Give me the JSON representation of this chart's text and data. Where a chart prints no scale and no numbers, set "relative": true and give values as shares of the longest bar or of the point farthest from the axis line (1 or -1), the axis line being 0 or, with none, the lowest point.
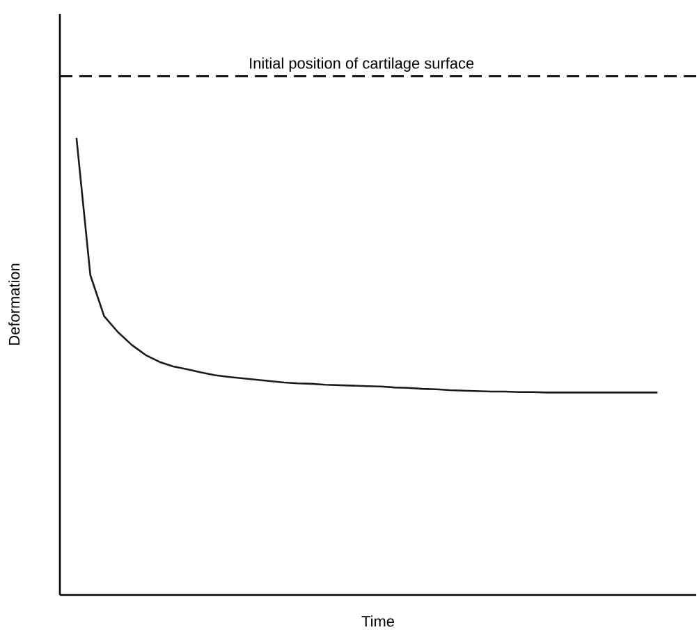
{
  "chart_data": {
    "type": "line",
    "relative": true,
    "xlabel": "Time",
    "ylabel": "Deformation",
    "categories": [
      null,
      null,
      null,
      null,
      null,
      null,
      null,
      null,
      null,
      null,
      null,
      null,
      null,
      null,
      null,
      null,
      null,
      null,
      null,
      null,
      null,
      null,
      null,
      null,
      null,
      null,
      null,
      null,
      null,
      null,
      null,
      null,
      null,
      null,
      null,
      null,
      null,
      null,
      null,
      null,
      null,
      null,
      null
    ],
    "series": [
      {
        "color": "#1a1a1a",
        "values": [
          1.0,
          0.7,
          0.61,
          0.575,
          0.547,
          0.525,
          0.51,
          0.5,
          0.494,
          0.487,
          0.481,
          0.477,
          0.474,
          0.471,
          0.468,
          0.465,
          0.463,
          0.462,
          0.46,
          0.459,
          0.458,
          0.457,
          0.456,
          0.454,
          0.453,
          0.451,
          0.45,
          0.448,
          0.447,
          0.446,
          0.445,
          0.445,
          0.444,
          0.444,
          0.443,
          0.443,
          0.443,
          0.443,
          0.443,
          0.443,
          0.443,
          0.443,
          0.443
        ]
      }
    ],
    "ref_lines": [
      {
        "axis": "y",
        "value": 1.135,
        "label": "Initial position of cartilage surface",
        "line_style": "dashed",
        "color": "#000000"
      }
    ],
    "marker": "none",
    "line_style": "solid"
  }
}
